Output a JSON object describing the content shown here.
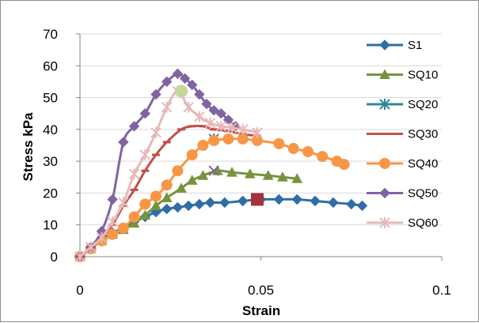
{
  "chart_data": {
    "type": "scatter",
    "xlabel": "Strain",
    "ylabel": "Stress kPa",
    "xlim": [
      0,
      0.1
    ],
    "ylim": [
      0,
      70
    ],
    "xticks": [
      0,
      0.05,
      0.1
    ],
    "xtick_labels": [
      "0",
      "0.05",
      "0.1"
    ],
    "yticks": [
      0,
      10,
      20,
      30,
      40,
      50,
      60,
      70
    ],
    "ytick_labels": [
      "0",
      "10",
      "20",
      "30",
      "40",
      "50",
      "60",
      "70"
    ],
    "grid": "horizontal",
    "legend_position": "right",
    "series": [
      {
        "name": "S1",
        "color": "#2e6ea6",
        "marker": "diamond",
        "x": [
          0,
          0.003,
          0.006,
          0.009,
          0.012,
          0.015,
          0.018,
          0.021,
          0.024,
          0.027,
          0.03,
          0.033,
          0.036,
          0.04,
          0.045,
          0.05,
          0.055,
          0.06,
          0.065,
          0.07,
          0.075,
          0.078
        ],
        "y": [
          0,
          3,
          5.5,
          7.5,
          9,
          11,
          12.5,
          14,
          15,
          15.5,
          16,
          16.5,
          17,
          17,
          17.5,
          18,
          18,
          18,
          17.5,
          17,
          16.5,
          16
        ]
      },
      {
        "name": "SQ10",
        "color": "#77933c",
        "marker": "triangle",
        "x": [
          0,
          0.003,
          0.006,
          0.009,
          0.012,
          0.015,
          0.018,
          0.021,
          0.024,
          0.028,
          0.031,
          0.034,
          0.038,
          0.042,
          0.047,
          0.052,
          0.056,
          0.06
        ],
        "y": [
          0,
          2.5,
          5,
          7,
          8.5,
          10.5,
          13,
          16,
          18.5,
          21.5,
          24,
          25.5,
          27,
          26.5,
          26,
          25.5,
          25,
          24.5
        ]
      },
      {
        "name": "SQ20",
        "color": "#31859c",
        "marker": "asterisk",
        "x": [
          0.037
        ],
        "y": [
          37
        ]
      },
      {
        "name": "SQ30",
        "color": "#c0504d",
        "marker": "dash",
        "x": [
          0,
          0.003,
          0.006,
          0.009,
          0.012,
          0.015,
          0.018,
          0.021,
          0.024,
          0.028,
          0.031,
          0.034,
          0.037,
          0.041,
          0.045,
          0.049,
          0.049
        ],
        "y": [
          0,
          3,
          6,
          10,
          16,
          21,
          27,
          32,
          36,
          40,
          41,
          41,
          40,
          39.5,
          38.5,
          38,
          18
        ]
      },
      {
        "name": "SQ40",
        "color": "#f79646",
        "marker": "circle",
        "x": [
          0,
          0.003,
          0.006,
          0.009,
          0.012,
          0.015,
          0.018,
          0.021,
          0.024,
          0.027,
          0.031,
          0.034,
          0.037,
          0.041,
          0.045,
          0.049,
          0.055,
          0.059,
          0.063,
          0.067,
          0.071,
          0.073
        ],
        "y": [
          0,
          2.5,
          5,
          7,
          9,
          12.5,
          16.5,
          19,
          22.5,
          27,
          32,
          35,
          36.5,
          37,
          37,
          36.5,
          35.5,
          34,
          33,
          31.5,
          30,
          29
        ]
      },
      {
        "name": "SQ50",
        "color": "#8064a2",
        "marker": "diamond",
        "x": [
          0,
          0.003,
          0.006,
          0.009,
          0.012,
          0.015,
          0.018,
          0.021,
          0.024,
          0.027,
          0.029,
          0.031,
          0.033,
          0.035,
          0.037,
          0.039,
          0.041,
          0.043
        ],
        "y": [
          0,
          3,
          8,
          18,
          36,
          41,
          45,
          51,
          55,
          57.5,
          56,
          54,
          51,
          48,
          46,
          45,
          43,
          41
        ]
      },
      {
        "name": "SQ60",
        "color": "#e6b9b8",
        "marker": "asterisk",
        "x": [
          0,
          0.003,
          0.006,
          0.009,
          0.012,
          0.015,
          0.018,
          0.021,
          0.024,
          0.027,
          0.03,
          0.033,
          0.036,
          0.039,
          0.042,
          0.045,
          0.049
        ],
        "y": [
          0,
          3,
          6,
          11,
          17,
          26,
          32,
          39,
          47,
          52,
          47,
          44,
          42,
          41,
          40.5,
          40,
          39
        ]
      }
    ],
    "extra_points": [
      {
        "x": 0.028,
        "y": 52,
        "color": "#c3d69b",
        "marker": "circle-large"
      },
      {
        "x": 0.037,
        "y": 27,
        "color": "#8064a2",
        "marker": "x"
      },
      {
        "x": 0.049,
        "y": 18,
        "color": "#a5333b",
        "marker": "square"
      }
    ]
  }
}
